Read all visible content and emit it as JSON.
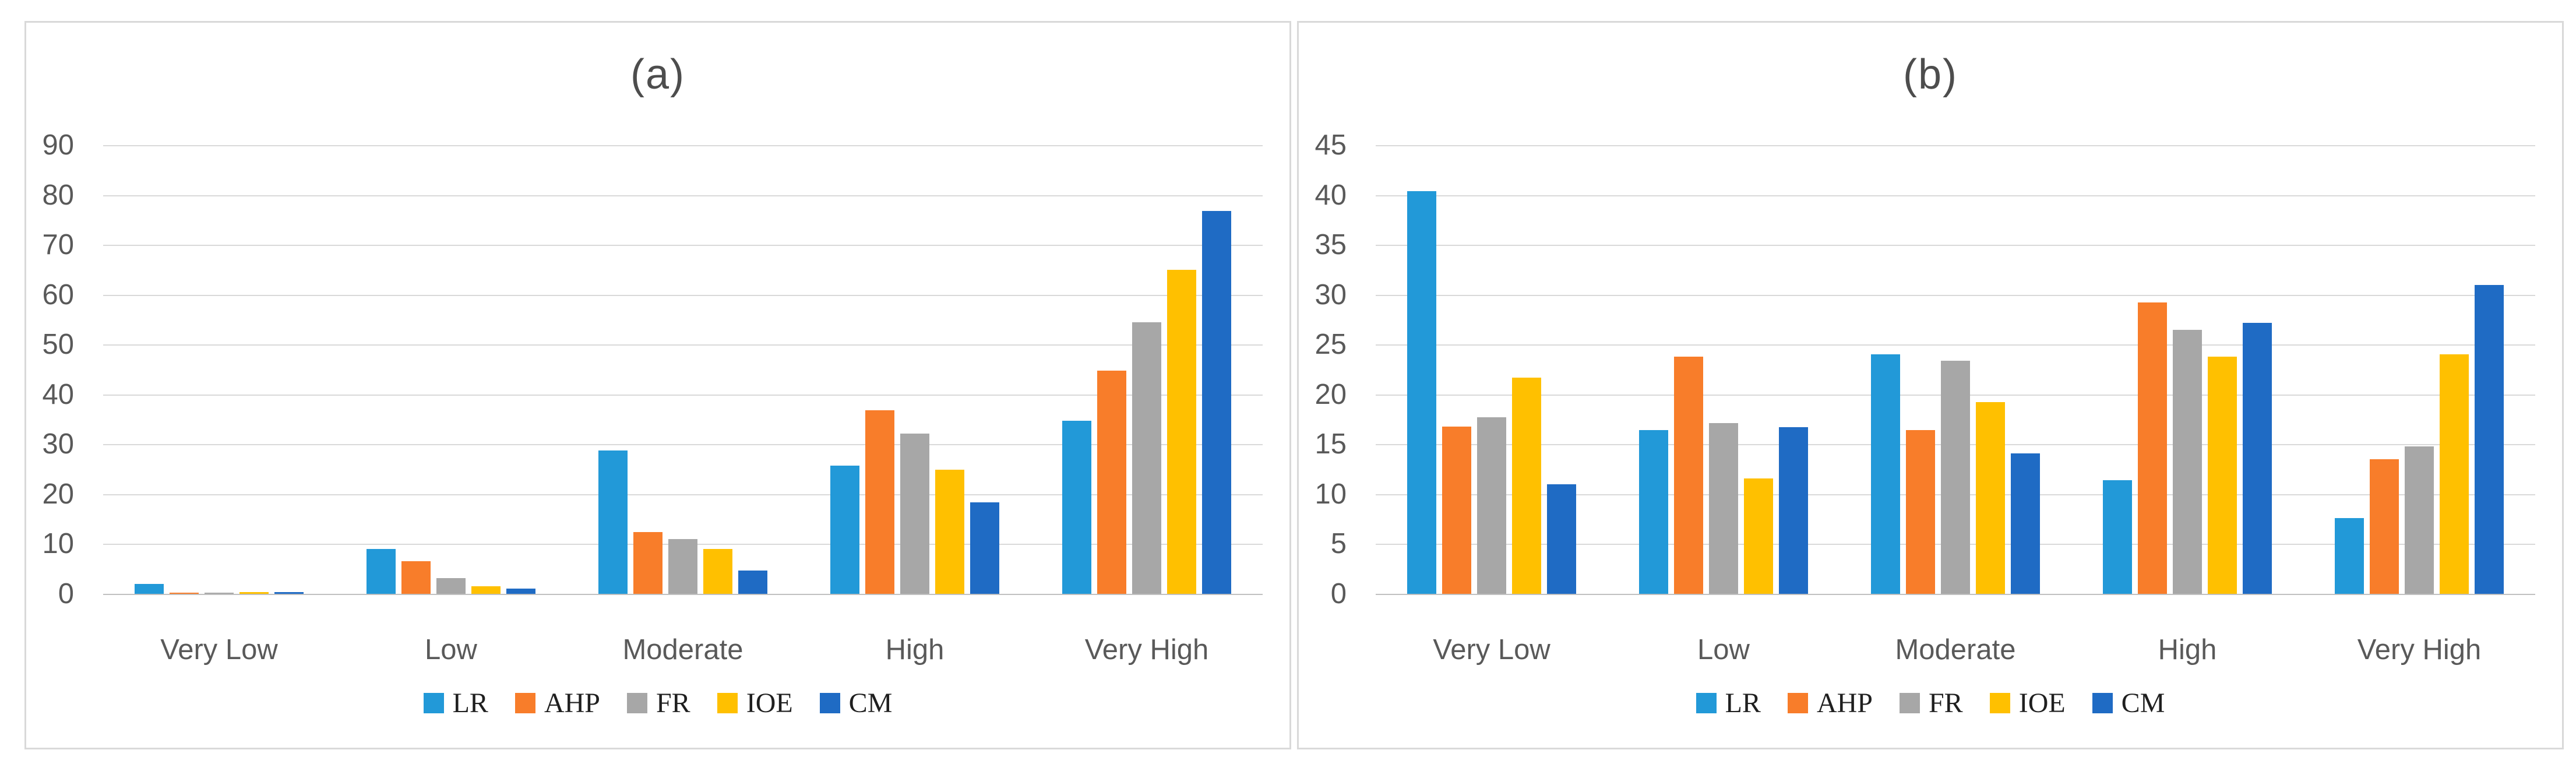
{
  "series_colors": {
    "LR": "#2299D8",
    "AHP": "#F87D2A",
    "FR": "#A7A7A7",
    "IOE": "#FFC000",
    "CM": "#1F6BC4"
  },
  "style_colors": {
    "gridline": "#D9D9D9",
    "axis_line": "#C0C0C0",
    "panel_border": "#D9D9D9",
    "tick_text": "#595959",
    "category_text": "#595959",
    "title_text": "#4D4D4D",
    "legend_text": "#1F1F1F"
  },
  "chart_data": [
    {
      "type": "bar",
      "title": "(a)",
      "categories": [
        "Very Low",
        "Low",
        "Moderate",
        "High",
        "Very High"
      ],
      "series": [
        {
          "name": "LR",
          "values": [
            2.0,
            9.0,
            28.7,
            25.7,
            34.7
          ]
        },
        {
          "name": "AHP",
          "values": [
            0.2,
            6.6,
            12.4,
            36.8,
            44.8
          ]
        },
        {
          "name": "FR",
          "values": [
            0.2,
            3.1,
            11.0,
            32.2,
            54.5
          ]
        },
        {
          "name": "IOE",
          "values": [
            0.3,
            1.5,
            9.0,
            24.9,
            65.0
          ]
        },
        {
          "name": "CM",
          "values": [
            0.3,
            1.1,
            4.7,
            18.4,
            76.8
          ]
        }
      ],
      "ylim": [
        0,
        90
      ],
      "ytick_step": 10,
      "yticks": [
        "0",
        "10",
        "20",
        "30",
        "40",
        "50",
        "60",
        "70",
        "80",
        "90"
      ],
      "xlabel": "",
      "ylabel": "",
      "grid": "horizontal",
      "legend": [
        "LR",
        "AHP",
        "FR",
        "IOE",
        "CM"
      ],
      "legend_position": "bottom"
    },
    {
      "type": "bar",
      "title": "(b)",
      "categories": [
        "Very Low",
        "Low",
        "Moderate",
        "High",
        "Very High"
      ],
      "series": [
        {
          "name": "LR",
          "values": [
            40.4,
            16.4,
            24.0,
            11.4,
            7.6
          ]
        },
        {
          "name": "AHP",
          "values": [
            16.8,
            23.8,
            16.4,
            29.2,
            13.5
          ]
        },
        {
          "name": "FR",
          "values": [
            17.7,
            17.1,
            23.4,
            26.5,
            14.8
          ]
        },
        {
          "name": "IOE",
          "values": [
            21.7,
            11.6,
            19.2,
            23.8,
            24.0
          ]
        },
        {
          "name": "CM",
          "values": [
            11.0,
            16.7,
            14.1,
            27.2,
            31.0
          ]
        }
      ],
      "ylim": [
        0,
        45
      ],
      "ytick_step": 5,
      "yticks": [
        "0",
        "5",
        "10",
        "15",
        "20",
        "25",
        "30",
        "35",
        "40",
        "45"
      ],
      "xlabel": "",
      "ylabel": "",
      "grid": "horizontal",
      "legend": [
        "LR",
        "AHP",
        "FR",
        "IOE",
        "CM"
      ],
      "legend_position": "bottom"
    }
  ]
}
